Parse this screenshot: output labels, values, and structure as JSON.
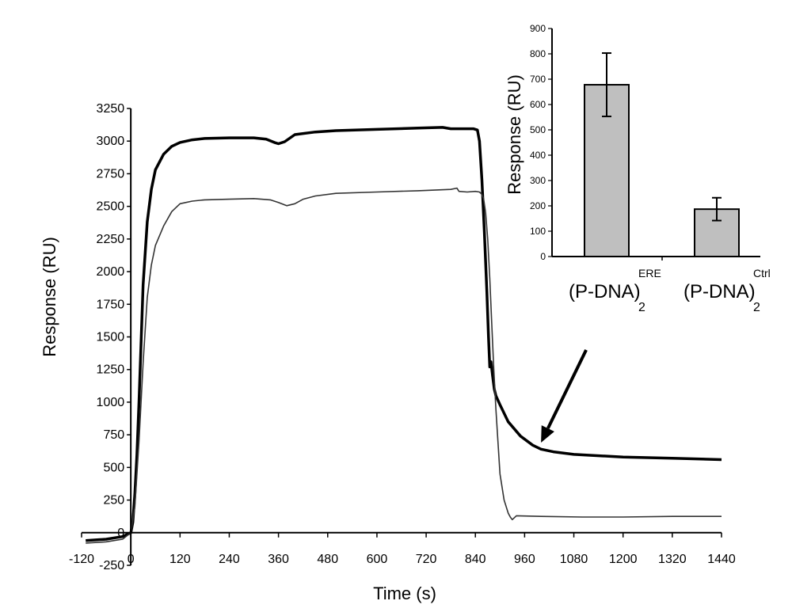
{
  "chart_data": [
    {
      "type": "line",
      "title": "",
      "xlabel": "Time (s)",
      "ylabel": "Response (RU)",
      "xlim": [
        -120,
        1440
      ],
      "ylim": [
        -250,
        3250
      ],
      "x_ticks": [
        "-120",
        "0",
        "120",
        "240",
        "360",
        "480",
        "600",
        "720",
        "840",
        "960",
        "1080",
        "1200",
        "1320",
        "1440"
      ],
      "y_ticks": [
        "-250",
        "0",
        "250",
        "500",
        "750",
        "1000",
        "1250",
        "1500",
        "1750",
        "2000",
        "2250",
        "2500",
        "2750",
        "3000",
        "3250"
      ],
      "series": [
        {
          "name": "(P-DNA)2 ERE",
          "color": "#000000",
          "style": "thick",
          "x": [
            -110,
            -60,
            -20,
            0,
            5,
            10,
            15,
            20,
            25,
            30,
            40,
            50,
            60,
            80,
            100,
            120,
            150,
            180,
            240,
            300,
            330,
            350,
            360,
            375,
            400,
            450,
            500,
            600,
            700,
            760,
            780,
            800,
            820,
            835,
            845,
            850,
            856,
            862,
            868,
            872,
            875,
            878,
            882,
            886,
            890,
            900,
            920,
            950,
            980,
            1000,
            1030,
            1080,
            1200,
            1320,
            1440
          ],
          "y": [
            -60,
            -50,
            -30,
            0,
            80,
            300,
            600,
            1000,
            1450,
            1900,
            2380,
            2630,
            2780,
            2900,
            2960,
            2990,
            3010,
            3020,
            3025,
            3025,
            3015,
            2990,
            2980,
            2995,
            3050,
            3070,
            3080,
            3090,
            3100,
            3105,
            3095,
            3095,
            3095,
            3095,
            3085,
            3000,
            2700,
            2300,
            1850,
            1500,
            1270,
            1310,
            1200,
            1100,
            1050,
            980,
            850,
            740,
            670,
            640,
            620,
            600,
            580,
            570,
            560
          ]
        },
        {
          "name": "(P-DNA)2 Ctrl",
          "color": "#333333",
          "style": "thin",
          "x": [
            -110,
            -60,
            -20,
            0,
            10,
            20,
            30,
            40,
            50,
            60,
            80,
            100,
            120,
            150,
            180,
            240,
            300,
            340,
            360,
            380,
            400,
            420,
            450,
            500,
            600,
            700,
            780,
            795,
            800,
            820,
            840,
            850,
            855,
            860,
            865,
            870,
            875,
            880,
            885,
            890,
            895,
            900,
            910,
            920,
            925,
            930,
            940,
            1000,
            1100,
            1200,
            1320,
            1440
          ],
          "y": [
            -80,
            -70,
            -50,
            0,
            200,
            700,
            1300,
            1800,
            2050,
            2200,
            2350,
            2460,
            2520,
            2540,
            2550,
            2555,
            2560,
            2550,
            2530,
            2505,
            2520,
            2555,
            2580,
            2600,
            2610,
            2620,
            2630,
            2640,
            2615,
            2610,
            2615,
            2610,
            2595,
            2560,
            2450,
            2250,
            1950,
            1600,
            1250,
            950,
            700,
            450,
            250,
            150,
            120,
            100,
            130,
            125,
            120,
            120,
            125,
            125
          ]
        }
      ],
      "annotations": [
        {
          "type": "arrow",
          "from": [
            1110,
            1400
          ],
          "to": [
            1000,
            690
          ]
        }
      ]
    },
    {
      "type": "bar",
      "title": "",
      "xlabel": "",
      "ylabel": "Response (RU)",
      "ylim": [
        0,
        900
      ],
      "y_ticks": [
        "0",
        "100",
        "200",
        "300",
        "400",
        "500",
        "600",
        "700",
        "800",
        "900"
      ],
      "categories": [
        {
          "main": "(P-DNA)",
          "sub": "2",
          "sup": "ERE"
        },
        {
          "main": "(P-DNA)",
          "sub": "2",
          "sup": "Ctrl"
        }
      ],
      "values": [
        678,
        187
      ],
      "errors": [
        125,
        45
      ],
      "bar_color": "#bfbfbf"
    }
  ]
}
